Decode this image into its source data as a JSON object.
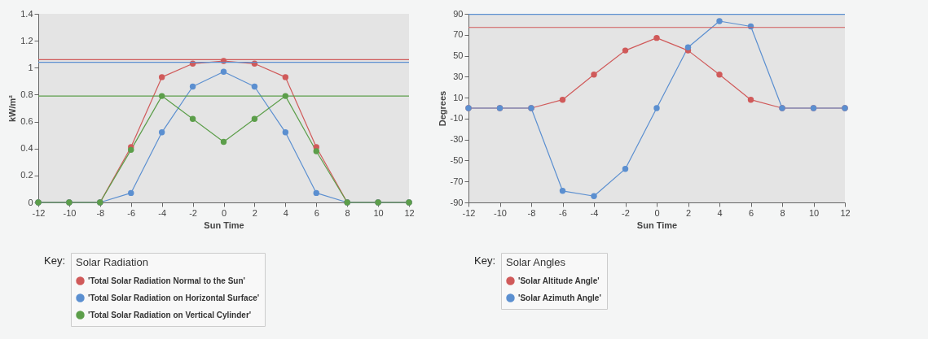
{
  "chart_data": [
    {
      "type": "line",
      "xlabel": "Sun Time",
      "ylabel": "kW/m²",
      "legend_title": "Solar Radiation",
      "annotations": [
        "Key:"
      ],
      "x": [
        -12,
        -10,
        -8,
        -6,
        -4,
        -2,
        0,
        2,
        4,
        6,
        8,
        10,
        12
      ],
      "series": [
        {
          "name": "'Total Solar Radiation Normal to the Sun'",
          "color": "#d05a5a",
          "values": [
            0,
            0,
            0,
            0.41,
            0.93,
            1.03,
            1.05,
            1.03,
            0.93,
            0.41,
            0,
            0,
            0
          ]
        },
        {
          "name": "'Total Solar Radiation on Horizontal Surface'",
          "color": "#5b8fd0",
          "values": [
            0,
            0,
            0,
            0.07,
            0.52,
            0.86,
            0.97,
            0.86,
            0.52,
            0.07,
            0,
            0,
            0
          ]
        },
        {
          "name": "'Total Solar Radiation on Vertical Cylinder'",
          "color": "#5c9e4a",
          "values": [
            0,
            0,
            0,
            0.39,
            0.79,
            0.62,
            0.45,
            0.62,
            0.79,
            0.38,
            0,
            0,
            0
          ]
        }
      ],
      "ref_lines": [
        {
          "axis": "y",
          "value": 1.06,
          "color": "#d05a5a"
        },
        {
          "axis": "y",
          "value": 1.04,
          "color": "#5b8fd0"
        },
        {
          "axis": "y",
          "value": 0.79,
          "color": "#5c9e4a"
        }
      ],
      "xlim": [
        -12,
        12
      ],
      "xticks": [
        -12,
        -10,
        -8,
        -6,
        -4,
        -2,
        0,
        2,
        4,
        6,
        8,
        10,
        12
      ],
      "ylim": [
        0,
        1.4
      ],
      "yticks": [
        0,
        0.2,
        0.4,
        0.6,
        0.8,
        1,
        1.2,
        1.4
      ],
      "grid": false,
      "legend": "bottom left",
      "marker": "circle",
      "line_style": "solid"
    },
    {
      "type": "line",
      "xlabel": "Sun Time",
      "ylabel": "Degrees",
      "legend_title": "Solar Angles",
      "annotations": [
        "Key:"
      ],
      "x": [
        -12,
        -10,
        -8,
        -6,
        -4,
        -2,
        0,
        2,
        4,
        6,
        8,
        10,
        12
      ],
      "series": [
        {
          "name": "'Solar Altitude Angle'",
          "color": "#d05a5a",
          "values": [
            0,
            0,
            0,
            8,
            32,
            55,
            67,
            55,
            32,
            8,
            0,
            0,
            0
          ]
        },
        {
          "name": "'Solar Azimuth Angle'",
          "color": "#5b8fd0",
          "values": [
            0,
            0,
            0,
            -79,
            -84,
            -58,
            0,
            58,
            83,
            78,
            0,
            0,
            0
          ]
        }
      ],
      "ref_lines": [
        {
          "axis": "y",
          "value": 89.5,
          "color": "#5b8fd0"
        },
        {
          "axis": "y",
          "value": 77,
          "color": "#d05a5a"
        }
      ],
      "xlim": [
        -12,
        12
      ],
      "xticks": [
        -12,
        -10,
        -8,
        -6,
        -4,
        -2,
        0,
        2,
        4,
        6,
        8,
        10,
        12
      ],
      "ylim": [
        -90,
        90
      ],
      "yticks": [
        -90,
        -70,
        -50,
        -30,
        -10,
        10,
        30,
        50,
        70,
        90
      ],
      "grid": false,
      "legend": "bottom left",
      "marker": "circle",
      "line_style": "solid"
    }
  ]
}
